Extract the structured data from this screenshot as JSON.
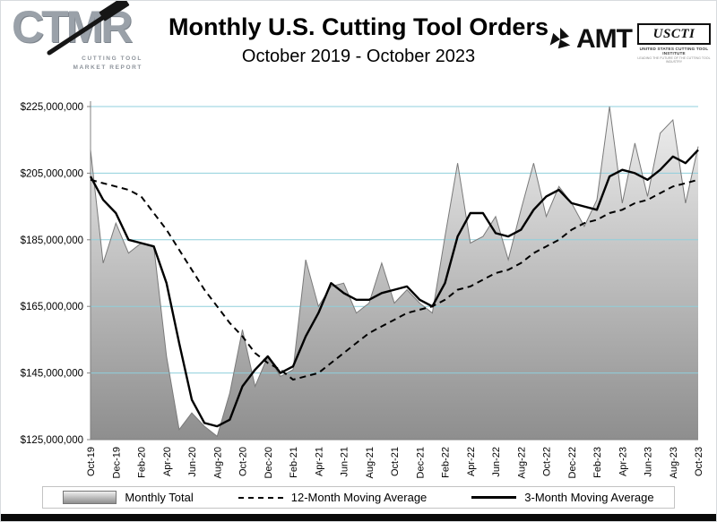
{
  "header": {
    "title": "Monthly U.S. Cutting Tool Orders",
    "subtitle": "October 2019 - October 2023",
    "ctmr_logo": {
      "letters": "CTMR",
      "tagline1": "CUTTING TOOL",
      "tagline2": "MARKET REPORT"
    },
    "amt_logo": {
      "label": "AMT"
    },
    "uscti_logo": {
      "label": "USCTI",
      "line1": "UNITED STATES CUTTING TOOL INSTITUTE",
      "line2": "LEADING THE FUTURE OF THE CUTTING TOOL INDUSTRY"
    }
  },
  "chart_data": {
    "type": "area",
    "title": "Monthly U.S. Cutting Tool Orders",
    "subtitle": "October 2019 - October 2023",
    "unit": "USD millions",
    "grid": true,
    "legend_position": "bottom",
    "ylim_millions": [
      125,
      225
    ],
    "y_ticks": [
      {
        "value": 225,
        "label": "$225,000,000"
      },
      {
        "value": 205,
        "label": "$205,000,000"
      },
      {
        "value": 185,
        "label": "$185,000,000"
      },
      {
        "value": 165,
        "label": "$165,000,000"
      },
      {
        "value": 145,
        "label": "$145,000,000"
      },
      {
        "value": 125,
        "label": "$125,000,000"
      }
    ],
    "x_ticks_shown_every": 2,
    "x": [
      "Oct-19",
      "Nov-19",
      "Dec-19",
      "Jan-20",
      "Feb-20",
      "Mar-20",
      "Apr-20",
      "May-20",
      "Jun-20",
      "Jul-20",
      "Aug-20",
      "Sep-20",
      "Oct-20",
      "Nov-20",
      "Dec-20",
      "Jan-21",
      "Feb-21",
      "Mar-21",
      "Apr-21",
      "May-21",
      "Jun-21",
      "Jul-21",
      "Aug-21",
      "Sep-21",
      "Oct-21",
      "Nov-21",
      "Dec-21",
      "Jan-22",
      "Feb-22",
      "Mar-22",
      "Apr-22",
      "May-22",
      "Jun-22",
      "Jul-22",
      "Aug-22",
      "Sep-22",
      "Oct-22",
      "Nov-22",
      "Dec-22",
      "Jan-23",
      "Feb-23",
      "Mar-23",
      "Apr-23",
      "May-23",
      "Jun-23",
      "Jul-23",
      "Aug-23",
      "Sep-23",
      "Oct-23"
    ],
    "series": [
      {
        "name": "Monthly Total",
        "style": "area",
        "values": [
          212,
          178,
          190,
          181,
          184,
          183,
          150,
          128,
          133,
          129,
          126,
          139,
          158,
          141,
          150,
          144,
          146,
          179,
          165,
          171,
          172,
          163,
          166,
          178,
          166,
          170,
          166,
          163,
          186,
          208,
          184,
          186,
          192,
          179,
          194,
          208,
          192,
          201,
          196,
          189,
          197,
          225,
          196,
          214,
          198,
          217,
          221,
          196,
          213
        ]
      },
      {
        "name": "12-Month Moving Average",
        "style": "dashed-line",
        "values": [
          203,
          202,
          201,
          200,
          198,
          193,
          188,
          182,
          176,
          170,
          165,
          160,
          156,
          151,
          148,
          146,
          143,
          144,
          145,
          148,
          151,
          154,
          157,
          159,
          161,
          163,
          164,
          165,
          167,
          170,
          171,
          173,
          175,
          176,
          178,
          181,
          183,
          185,
          188,
          190,
          191,
          193,
          194,
          196,
          197,
          199,
          201,
          202,
          203
        ]
      },
      {
        "name": "3-Month Moving Average",
        "style": "solid-line",
        "values": [
          204,
          197,
          193,
          185,
          184,
          183,
          172,
          154,
          137,
          130,
          129,
          131,
          141,
          146,
          150,
          145,
          147,
          156,
          163,
          172,
          169,
          167,
          167,
          169,
          170,
          171,
          167,
          165,
          172,
          186,
          193,
          193,
          187,
          186,
          188,
          194,
          198,
          200,
          196,
          195,
          194,
          204,
          206,
          205,
          203,
          206,
          210,
          208,
          212
        ]
      }
    ],
    "colors": {
      "gridline": "#8fcfdc",
      "area_top": "#efefef",
      "area_bottom": "#8e8e8e",
      "area_edge": "#7a7a7a",
      "line": "#000000",
      "axis": "#808080"
    }
  }
}
